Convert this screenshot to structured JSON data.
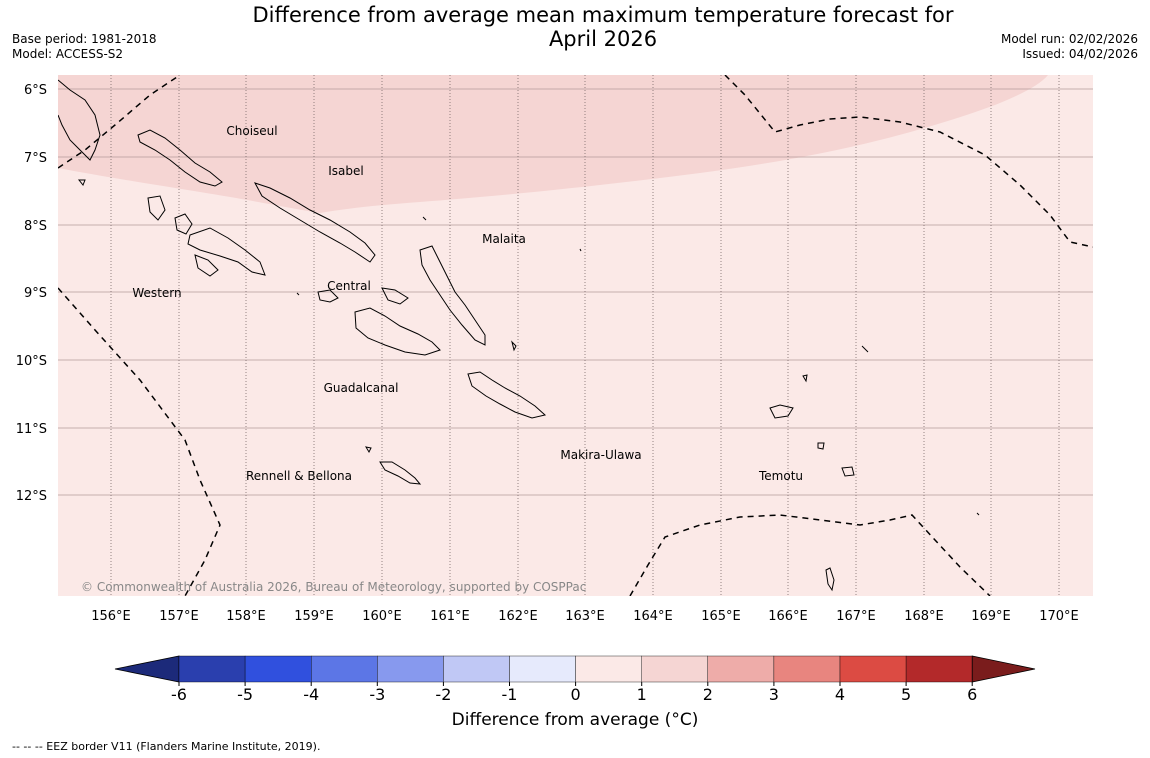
{
  "header": {
    "title_line1": "Difference from average mean maximum temperature forecast for",
    "title_line2": "April 2026",
    "base_period": "Base period: 1981-2018",
    "model": "Model: ACCESS-S2",
    "model_run": "Model run: 02/02/2026",
    "issued": "Issued: 04/02/2026"
  },
  "map": {
    "latitude_labels": [
      "6°S",
      "7°S",
      "8°S",
      "9°S",
      "10°S",
      "11°S",
      "12°S"
    ],
    "longitude_labels": [
      "156°E",
      "157°E",
      "158°E",
      "159°E",
      "160°E",
      "161°E",
      "162°E",
      "163°E",
      "164°E",
      "165°E",
      "166°E",
      "167°E",
      "168°E",
      "169°E",
      "170°E"
    ],
    "region_labels": [
      "Choiseul",
      "Isabel",
      "Malaita",
      "Western",
      "Central",
      "Guadalcanal",
      "Makira-Ulawa",
      "Rennell & Bellona",
      "Temotu"
    ],
    "anomaly_fill_colors": {
      "zero_to_one": "#fbe9e7",
      "one_to_two": "#f5d5d3"
    },
    "eez_line_style": "dashed",
    "copyright": "© Commonwealth of Australia 2026, Bureau of Meteorology, supported by COSPPac"
  },
  "colorbar": {
    "ticks": [
      "-6",
      "-5",
      "-4",
      "-3",
      "-2",
      "-1",
      "0",
      "1",
      "2",
      "3",
      "4",
      "5",
      "6"
    ],
    "colors": [
      "#1c2a7a",
      "#2a3fae",
      "#3050de",
      "#5c76e6",
      "#8799ee",
      "#c0c8f5",
      "#e6eafc",
      "#fbe9e7",
      "#f5d5d3",
      "#eeaca9",
      "#e8857f",
      "#dc4b43",
      "#b3292a",
      "#7a1c1c"
    ],
    "title": "Difference from average (",
    "title_unit": "°C",
    "title_close": ")"
  },
  "footnote": "--  --  -- EEZ border V11 (Flanders Marine Institute, 2019)."
}
